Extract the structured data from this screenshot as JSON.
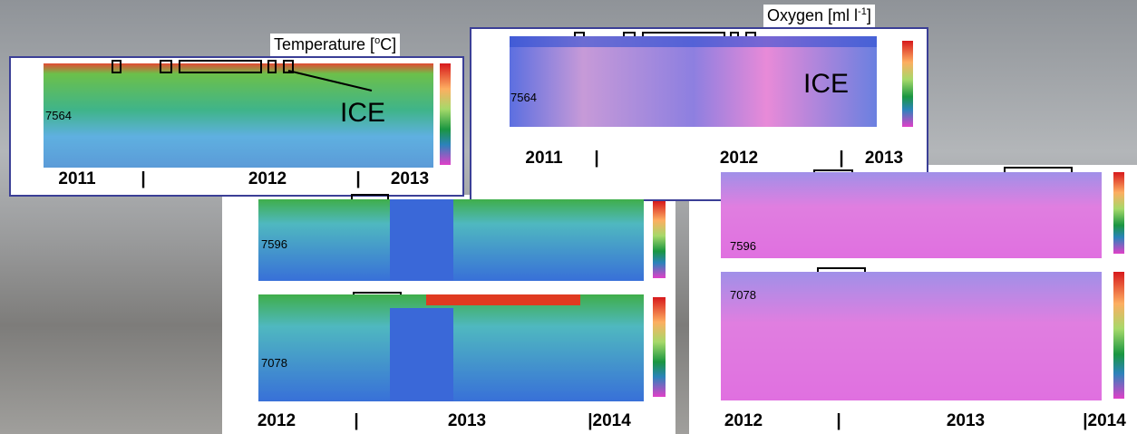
{
  "panels": [
    {
      "title": {
        "text": "Temperature [",
        "sup": "o",
        "end": "C]"
      },
      "annotation": "ICE",
      "mooring": "7564",
      "years": [
        "2011",
        "|",
        "2012",
        "|",
        "2013"
      ]
    },
    {
      "title": {
        "text": "Oxygen [ml l",
        "sup": "-1",
        "end": "]"
      },
      "annotation": "ICE",
      "mooring": "7564",
      "years": [
        "2011",
        "|",
        "2012",
        "|",
        "2013"
      ]
    },
    {
      "moorings": [
        "7596",
        "7078"
      ],
      "years": [
        "2012",
        "|",
        "2013",
        "|2014"
      ]
    },
    {
      "moorings": [
        "7596",
        "7078"
      ],
      "years": [
        "2012",
        "|",
        "2013",
        "|2014"
      ]
    }
  ]
}
